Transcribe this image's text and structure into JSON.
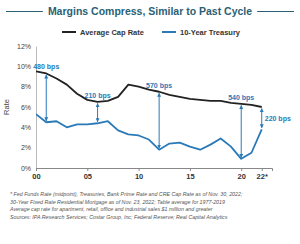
{
  "chart_data": {
    "type": "line",
    "title": "Margins Compress, Similar to Past Cycle",
    "y_label": "Rate",
    "x": [
      2000,
      2001,
      2002,
      2003,
      2004,
      2005,
      2006,
      2007,
      2008,
      2009,
      2010,
      2011,
      2012,
      2013,
      2014,
      2015,
      2016,
      2017,
      2018,
      2019,
      2020,
      2021,
      2022
    ],
    "series": [
      {
        "name": "Average Cap Rate",
        "color": "#222222",
        "values": [
          9.5,
          9.3,
          8.8,
          8.2,
          7.3,
          6.7,
          6.5,
          6.6,
          7.0,
          8.2,
          8.0,
          7.7,
          7.5,
          7.2,
          7.0,
          6.8,
          6.7,
          6.6,
          6.6,
          6.4,
          6.3,
          6.2,
          6.0
        ]
      },
      {
        "name": "10-Year Treasury",
        "color": "#2a7ab8",
        "values": [
          5.3,
          4.5,
          4.6,
          4.0,
          4.3,
          4.3,
          4.4,
          4.6,
          3.7,
          3.3,
          3.2,
          2.8,
          1.8,
          2.4,
          2.5,
          2.1,
          1.8,
          2.3,
          2.9,
          2.1,
          0.9,
          1.5,
          3.8
        ]
      }
    ],
    "xlim": [
      2000,
      2023
    ],
    "xticks": [
      {
        "value": 2000,
        "label": "00"
      },
      {
        "value": 2005,
        "label": "05"
      },
      {
        "value": 2010,
        "label": "10"
      },
      {
        "value": 2015,
        "label": "15"
      },
      {
        "value": 2020,
        "label": "20"
      },
      {
        "value": 2022,
        "label": "22*"
      }
    ],
    "ylim": [
      0,
      12
    ],
    "yticks": [
      {
        "value": 0,
        "label": "0%"
      },
      {
        "value": 2,
        "label": "2%"
      },
      {
        "value": 4,
        "label": "4%"
      },
      {
        "value": 6,
        "label": "6%"
      },
      {
        "value": 8,
        "label": "8%"
      },
      {
        "value": 10,
        "label": "10%"
      },
      {
        "value": 12,
        "label": "12%"
      }
    ],
    "grid": false,
    "legend": "top",
    "annotations": [
      {
        "text": "480 bps",
        "x": 2001
      },
      {
        "text": "210 bps",
        "x": 2006
      },
      {
        "text": "570 bps",
        "x": 2012
      },
      {
        "text": "540 bps",
        "x": 2020
      },
      {
        "text": "220 bps",
        "x": 2022
      }
    ],
    "notes": [
      "* Fed Funds Rate (midpoint), Treasuries, Bank Prime Rate and CRE Cap Rate as of Nov. 30, 2022;",
      "30-Year Fixed Rate Residential Mortgage as of Nov. 23, 2022; Table average for 1977-2019",
      "Average cap rate for apartment, retail, office and industrial sales $1 million and greater",
      "Sources: IPA Research Services; Costar Group, Inc; Federal Reserve; Real Capital Analytics"
    ]
  }
}
